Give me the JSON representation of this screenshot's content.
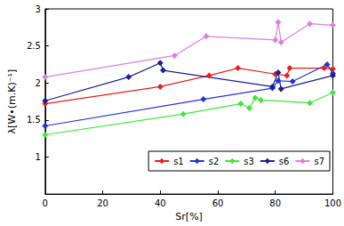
{
  "chart_data": {
    "type": "line",
    "x_label": "Sr[%]",
    "y_label": "λ[W•(m.K)⁻¹]",
    "xlim": [
      0,
      100
    ],
    "xticks": [
      0,
      20,
      40,
      60,
      80,
      100
    ],
    "ylim": [
      0.5,
      3
    ],
    "yticks": [
      1,
      1.5,
      2,
      2.5,
      3
    ],
    "grid": false,
    "legend": "lower right",
    "marker": "diamond",
    "series": [
      {
        "name": "s1",
        "color": "#e8201c",
        "x": [
          0,
          40,
          57,
          67,
          80,
          84,
          85,
          97,
          100
        ],
        "values": [
          1.72,
          1.95,
          2.1,
          2.2,
          2.12,
          2.1,
          2.2,
          2.2,
          2.19
        ]
      },
      {
        "name": "s2",
        "color": "#2233d8",
        "x": [
          0,
          55,
          79,
          81,
          86,
          98,
          100
        ],
        "values": [
          1.42,
          1.78,
          1.93,
          2.03,
          2.02,
          2.25,
          2.13
        ]
      },
      {
        "name": "s3",
        "color": "#3ee83a",
        "x": [
          0,
          48,
          68,
          71,
          73,
          75,
          92,
          100
        ],
        "values": [
          1.3,
          1.58,
          1.72,
          1.66,
          1.8,
          1.77,
          1.73,
          1.87
        ]
      },
      {
        "name": "s6",
        "color": "#1a2096",
        "x": [
          0,
          29,
          40,
          41,
          79,
          81,
          82,
          100
        ],
        "values": [
          1.76,
          2.08,
          2.27,
          2.17,
          1.95,
          2.14,
          1.92,
          2.1
        ]
      },
      {
        "name": "s7",
        "color": "#e07ee2",
        "x": [
          0,
          45,
          56,
          80,
          81,
          82,
          92,
          100
        ],
        "values": [
          2.08,
          2.37,
          2.63,
          2.58,
          2.82,
          2.55,
          2.8,
          2.78
        ]
      }
    ]
  }
}
